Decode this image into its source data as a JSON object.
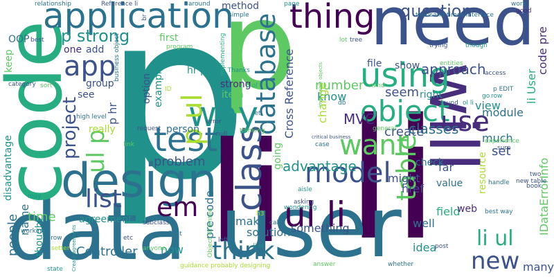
{
  "palette": {
    "dark_purple": "#440154",
    "indigo": "#472d7b",
    "slate_blue": "#3b528b",
    "steel_blue": "#2c728e",
    "teal": "#21918c",
    "sea_green": "#27ad81",
    "green": "#5ec962",
    "lime": "#aadc32",
    "yellow": "#fde725"
  },
  "words": [
    {
      "text": "p",
      "color": "#21918c"
    },
    {
      "text": "p",
      "color": "#5ec962"
    },
    {
      "text": "li",
      "color": "#440154"
    },
    {
      "text": "li",
      "color": "#440154"
    },
    {
      "text": "user",
      "color": "#2c728e"
    },
    {
      "text": "data",
      "color": "#2c728e"
    },
    {
      "text": "code",
      "color": "#27ad81"
    },
    {
      "text": "need",
      "color": "#3b528b"
    },
    {
      "text": "will",
      "color": "#472d7b"
    },
    {
      "text": "design",
      "color": "#2c728e"
    },
    {
      "text": "application",
      "color": "#2c728e"
    },
    {
      "text": "class",
      "color": "#3b528b"
    },
    {
      "text": "way",
      "color": "#21918c"
    },
    {
      "text": "ul li",
      "color": "#440154"
    },
    {
      "text": "test",
      "color": "#2c728e"
    },
    {
      "text": "model",
      "color": "#3b528b"
    },
    {
      "text": "object",
      "color": "#27ad81"
    },
    {
      "text": "using",
      "color": "#27ad81"
    },
    {
      "text": "want",
      "color": "#5ec962"
    },
    {
      "text": "database",
      "color": "#2c728e"
    },
    {
      "text": "p ul",
      "color": "#aadc32"
    },
    {
      "text": "thing",
      "color": "#440154"
    },
    {
      "text": "table",
      "color": "#5ec962"
    },
    {
      "text": "use",
      "color": "#472d7b"
    },
    {
      "text": "question",
      "color": "#3b528b"
    },
    {
      "text": "think",
      "color": "#2c728e"
    },
    {
      "text": "new",
      "color": "#3b528b"
    },
    {
      "text": "li ul",
      "color": "#27ad81"
    },
    {
      "text": "em",
      "color": "#440154"
    },
    {
      "text": "list",
      "color": "#3b528b"
    },
    {
      "text": "app",
      "color": "#3b528b"
    },
    {
      "text": "ul p",
      "color": "#5ec962"
    },
    {
      "text": "project",
      "color": "#3b528b"
    },
    {
      "text": "p strong",
      "color": "#21918c"
    },
    {
      "text": "people",
      "color": "#2c728e"
    },
    {
      "text": "advantage",
      "color": "#21918c"
    },
    {
      "text": "time",
      "color": "#5ec962"
    },
    {
      "text": "problem",
      "color": "#3b528b"
    },
    {
      "text": "pre code",
      "color": "#2c728e"
    },
    {
      "text": "Cross Reference",
      "color": "#3b528b"
    },
    {
      "text": "number",
      "color": "#5ec962"
    },
    {
      "text": "p hr",
      "color": "#3b528b"
    },
    {
      "text": "hr p",
      "color": "#21918c"
    },
    {
      "text": "disadvantage",
      "color": "#21918c"
    },
    {
      "text": "solution",
      "color": "#2c728e"
    },
    {
      "text": "something",
      "color": "#3b528b"
    },
    {
      "text": "MVC",
      "color": "#472d7b"
    },
    {
      "text": "approach",
      "color": "#3b528b"
    },
    {
      "text": "classes",
      "color": "#2c728e"
    },
    {
      "text": "create",
      "color": "#3b528b"
    },
    {
      "text": "know",
      "color": "#21918c"
    },
    {
      "text": "seem",
      "color": "#3b528b"
    },
    {
      "text": "change",
      "color": "#aadc32"
    },
    {
      "text": "view",
      "color": "#21918c"
    },
    {
      "text": "module",
      "color": "#2c728e"
    },
    {
      "text": "much",
      "color": "#2c728e"
    },
    {
      "text": "set",
      "color": "#3b528b"
    },
    {
      "text": "IDataErrorInfo",
      "color": "#5ec962"
    },
    {
      "text": "li User",
      "color": "#27ad81"
    },
    {
      "text": "code pre",
      "color": "#472d7b"
    },
    {
      "text": "Controller",
      "color": "#2c728e"
    },
    {
      "text": "agreement",
      "color": "#21918c"
    },
    {
      "text": "name",
      "color": "#2c728e"
    },
    {
      "text": "thought",
      "color": "#21918c"
    },
    {
      "text": "now",
      "color": "#21918c"
    },
    {
      "text": "make",
      "color": "#2c728e"
    },
    {
      "text": "idea",
      "color": "#21918c"
    },
    {
      "text": "well",
      "color": "#2c728e"
    },
    {
      "text": "field",
      "color": "#27ad81"
    },
    {
      "text": "many",
      "color": "#3b528b"
    },
    {
      "text": "web",
      "color": "#472d7b"
    },
    {
      "text": "might",
      "color": "#3b528b"
    },
    {
      "text": "href",
      "color": "#3b528b"
    },
    {
      "text": "value",
      "color": "#2c728e"
    },
    {
      "text": "resource",
      "color": "#aadc32"
    },
    {
      "text": "far",
      "color": "#3b528b"
    },
    {
      "text": "check",
      "color": "#2c728e"
    },
    {
      "text": "going",
      "color": "#5ec962"
    },
    {
      "text": "person",
      "color": "#2c728e"
    },
    {
      "text": "really",
      "color": "#aadc32"
    },
    {
      "text": "see",
      "color": "#3b528b"
    },
    {
      "text": "group",
      "color": "#3b528b"
    },
    {
      "text": "one",
      "color": "#472d7b"
    },
    {
      "text": "add",
      "color": "#3b528b"
    },
    {
      "text": "first",
      "color": "#5ec962"
    },
    {
      "text": "strong",
      "color": "#472d7b"
    },
    {
      "text": "item",
      "color": "#5ec962"
    },
    {
      "text": "option",
      "color": "#3b528b"
    },
    {
      "text": "example",
      "color": "#21918c"
    },
    {
      "text": "method",
      "color": "#3b528b"
    },
    {
      "text": "keep",
      "color": "#5ec962"
    },
    {
      "text": "OOP",
      "color": "#2c728e"
    },
    {
      "text": "file",
      "color": "#3b528b"
    },
    {
      "text": "show",
      "color": "#3b528b"
    },
    {
      "text": "right",
      "color": "#21918c"
    },
    {
      "text": "relationship",
      "color": "#2c728e"
    },
    {
      "text": "Reference li",
      "color": "#3b528b"
    },
    {
      "text": "around",
      "color": "#2c728e"
    },
    {
      "text": "page",
      "color": "#21918c"
    },
    {
      "text": "thousand times interface",
      "color": "#2c728e"
    },
    {
      "text": "work",
      "color": "#2c728e"
    },
    {
      "text": "good",
      "color": "#472d7b"
    },
    {
      "text": "tree",
      "color": "#3b528b"
    },
    {
      "text": "lot",
      "color": "#5ec962"
    },
    {
      "text": "best",
      "color": "#3b528b"
    },
    {
      "text": "category",
      "color": "#3b528b"
    },
    {
      "text": "sort",
      "color": "#5ec962"
    },
    {
      "text": "p ol",
      "color": "#27ad81"
    },
    {
      "text": "p Thanks",
      "color": "#21918c"
    },
    {
      "text": "reason",
      "color": "#21918c"
    },
    {
      "text": "program",
      "color": "#5ec962"
    },
    {
      "text": "simple",
      "color": "#2c728e"
    },
    {
      "text": "entities",
      "color": "#5ec962"
    },
    {
      "text": "access",
      "color": "#3b528b"
    },
    {
      "text": "trying",
      "color": "#3b528b"
    },
    {
      "text": "though",
      "color": "#21918c"
    },
    {
      "text": "handle",
      "color": "#2c728e"
    },
    {
      "text": "go",
      "color": "#21918c"
    },
    {
      "text": "row",
      "color": "#21918c"
    },
    {
      "text": "p EDIT",
      "color": "#2c728e"
    },
    {
      "text": "found",
      "color": "#3b528b"
    },
    {
      "text": "ol li",
      "color": "#21918c"
    },
    {
      "text": "db",
      "color": "#2c728e"
    },
    {
      "text": "mind",
      "color": "#5ec962"
    },
    {
      "text": "let",
      "color": "#2c728e"
    },
    {
      "text": "thinking",
      "color": "#5ec962"
    },
    {
      "text": "error",
      "color": "#3b528b"
    },
    {
      "text": "null",
      "color": "#3b528b"
    },
    {
      "text": "request",
      "color": "#3b528b"
    },
    {
      "text": "general",
      "color": "#5ec962"
    },
    {
      "text": "case",
      "color": "#2c728e"
    },
    {
      "text": "experience",
      "color": "#5ec962"
    },
    {
      "text": "sure",
      "color": "#3b528b"
    },
    {
      "text": "new table",
      "color": "#3b528b"
    },
    {
      "text": "two",
      "color": "#3b528b"
    },
    {
      "text": "book",
      "color": "#3b528b"
    },
    {
      "text": "best way",
      "color": "#2c728e"
    },
    {
      "text": "post",
      "color": "#3b528b"
    },
    {
      "text": "whether",
      "color": "#2c728e"
    },
    {
      "text": "answer",
      "color": "#5ec962"
    },
    {
      "text": "call",
      "color": "#2c728e"
    },
    {
      "text": "asking",
      "color": "#3b528b"
    },
    {
      "text": "aisle",
      "color": "#21918c"
    },
    {
      "text": "wondering",
      "color": "#21918c"
    },
    {
      "text": "left",
      "color": "#3b528b"
    },
    {
      "text": "li ol",
      "color": "#21918c"
    },
    {
      "text": "guidance probably designing",
      "color": "#aadc32"
    },
    {
      "text": "Object Oriented",
      "color": "#5ec962"
    },
    {
      "text": "client",
      "color": "#2c728e"
    },
    {
      "text": "anyone",
      "color": "#5ec962"
    },
    {
      "text": "subclass",
      "color": "#3b528b"
    },
    {
      "text": "etc",
      "color": "#3b528b"
    },
    {
      "text": "state",
      "color": "#21918c"
    },
    {
      "text": "setter",
      "color": "#aadc32"
    },
    {
      "text": "throw",
      "color": "#2c728e"
    },
    {
      "text": "may",
      "color": "#21918c"
    },
    {
      "text": "working",
      "color": "#2c728e"
    },
    {
      "text": "link",
      "color": "#5ec962"
    },
    {
      "text": "high level",
      "color": "#2c728e"
    },
    {
      "text": "ID",
      "color": "#aadc32"
    },
    {
      "text": "h3",
      "color": "#aadc32"
    },
    {
      "text": "business object",
      "color": "#2c728e"
    },
    {
      "text": "implementing",
      "color": "#27ad81"
    },
    {
      "text": "br",
      "color": "#3b528b"
    },
    {
      "text": "critical business",
      "color": "#3b528b"
    },
    {
      "text": "immutable objects",
      "color": "#5ec962"
    },
    {
      "text": "Create agreements",
      "color": "#21918c"
    }
  ]
}
